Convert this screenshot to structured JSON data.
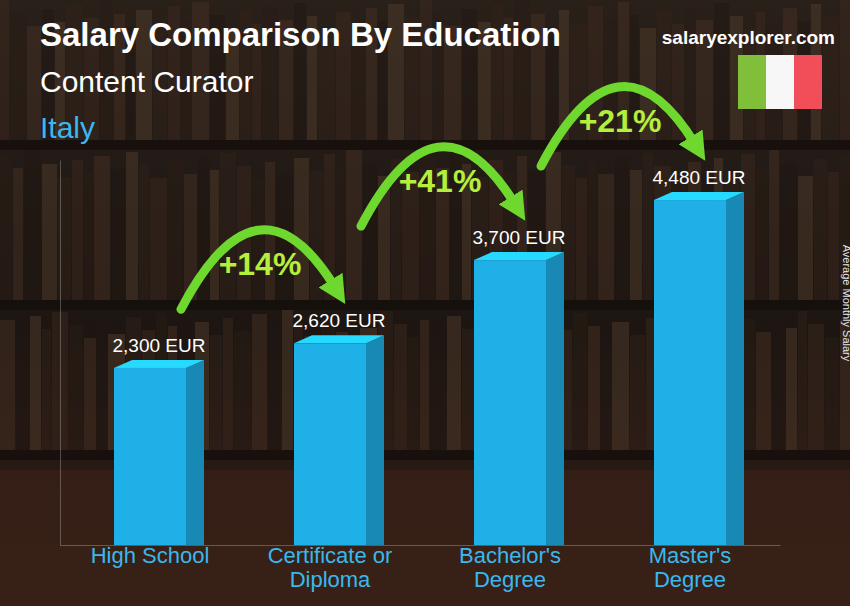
{
  "chart_data": {
    "type": "bar",
    "title": "Salary Comparison By Education",
    "subtitle": [
      "Content Curator",
      "Italy"
    ],
    "source": "salaryexplorer.com",
    "y_label": "Average Monthly Salary",
    "categories": [
      "High School",
      "Certificate or Diploma",
      "Bachelor's Degree",
      "Master's Degree"
    ],
    "values": [
      2300,
      2620,
      3700,
      4480
    ],
    "value_labels": [
      "2,300 EUR",
      "2,620 EUR",
      "3,700 EUR",
      "4,480 EUR"
    ],
    "data_labels": true,
    "annotations": [
      "+14%",
      "+41%",
      "+21%"
    ],
    "color": "#1fb0e8",
    "ylim": [
      0,
      5000
    ],
    "tick_labels": "x",
    "grid": false
  }
}
